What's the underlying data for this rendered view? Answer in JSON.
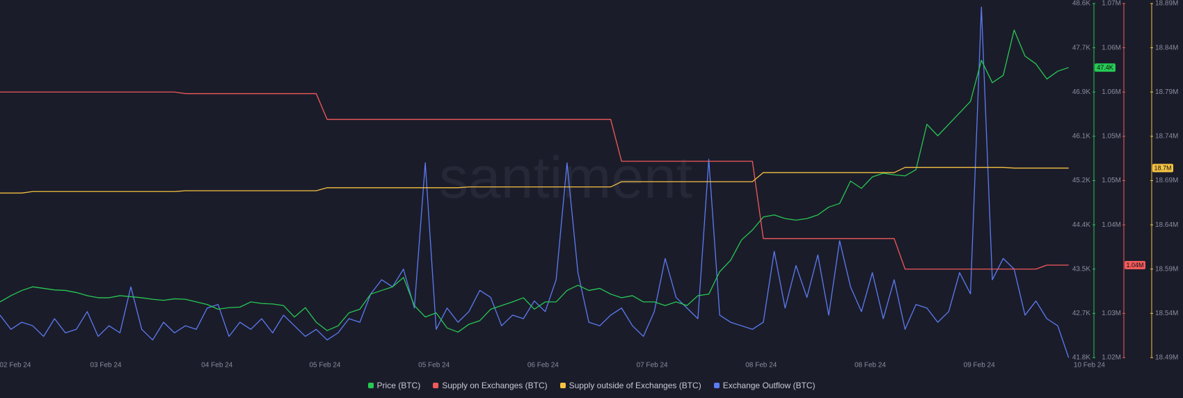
{
  "chart_data": {
    "type": "line",
    "watermark": "santiment",
    "x": [
      0,
      1,
      2,
      3,
      4,
      5,
      6,
      7,
      8,
      9,
      10,
      11,
      12,
      13,
      14,
      15,
      16,
      17,
      18,
      19,
      20,
      21,
      22,
      23,
      24,
      25,
      26,
      27,
      28,
      29,
      30,
      31,
      32,
      33,
      34,
      35,
      36,
      37,
      38,
      39,
      40,
      41,
      42,
      43,
      44,
      45,
      46,
      47,
      48,
      49,
      50,
      51,
      52,
      53,
      54,
      55,
      56,
      57,
      58,
      59,
      60,
      61,
      62,
      63,
      64,
      65,
      66,
      67,
      68,
      69,
      70,
      71,
      72,
      73,
      74,
      75,
      76,
      77,
      78,
      79,
      80,
      81,
      82,
      83,
      84,
      85,
      86,
      87,
      88,
      89,
      90,
      91,
      92,
      93,
      94,
      95,
      96,
      97,
      98
    ],
    "xlim": [
      0,
      100
    ],
    "xticks": [
      {
        "value": 1.4,
        "label": "02 Feb 24"
      },
      {
        "value": 9.7,
        "label": "03 Feb 24"
      },
      {
        "value": 19.9,
        "label": "04 Feb 24"
      },
      {
        "value": 29.8,
        "label": "05 Feb 24"
      },
      {
        "value": 39.8,
        "label": "05 Feb 24"
      },
      {
        "value": 49.8,
        "label": "06 Feb 24"
      },
      {
        "value": 59.8,
        "label": "07 Feb 24"
      },
      {
        "value": 69.8,
        "label": "08 Feb 24"
      },
      {
        "value": 79.8,
        "label": "08 Feb 24"
      },
      {
        "value": 89.8,
        "label": "09 Feb 24"
      },
      {
        "value": 99.9,
        "label": "10 Feb 24"
      }
    ],
    "ylim": [
      41800,
      48600
    ],
    "yticks": [
      {
        "value": 41800,
        "label": "41.8K"
      },
      {
        "value": 42650,
        "label": "42.7K"
      },
      {
        "value": 43500,
        "label": "43.5K"
      },
      {
        "value": 44350,
        "label": "44.4K"
      },
      {
        "value": 45200,
        "label": "45.2K"
      },
      {
        "value": 46050,
        "label": "46.1K"
      },
      {
        "value": 46900,
        "label": "46.9K"
      },
      {
        "value": 47750,
        "label": "47.7K"
      },
      {
        "value": 48600,
        "label": "48.6K"
      }
    ],
    "y2lim": [
      1024000,
      1068000
    ],
    "y2ticks": [
      {
        "value": 1024000,
        "label": "1.02M"
      },
      {
        "value": 1029500,
        "label": "1.03M"
      },
      {
        "value": 1040500,
        "label": "1.04M"
      },
      {
        "value": 1046000,
        "label": "1.05M"
      },
      {
        "value": 1051500,
        "label": "1.05M"
      },
      {
        "value": 1057000,
        "label": "1.06M"
      },
      {
        "value": 1062500,
        "label": "1.06M"
      },
      {
        "value": 1068000,
        "label": "1.07M"
      }
    ],
    "y3lim": [
      18490000,
      18890000
    ],
    "y3ticks": [
      {
        "value": 18490000,
        "label": "18.49M"
      },
      {
        "value": 18540000,
        "label": "18.54M"
      },
      {
        "value": 18590000,
        "label": "18.59M"
      },
      {
        "value": 18640000,
        "label": "18.64M"
      },
      {
        "value": 18690000,
        "label": "18.69M"
      },
      {
        "value": 18740000,
        "label": "18.74M"
      },
      {
        "value": 18790000,
        "label": "18.79M"
      },
      {
        "value": 18840000,
        "label": "18.84M"
      },
      {
        "value": 18890000,
        "label": "18.89M"
      }
    ],
    "y4lim": [
      0,
      100
    ],
    "grid": false,
    "legend": "bottom",
    "series": [
      {
        "name": "Price (BTC)",
        "color": "#26c953",
        "axis": "y",
        "badge": "47.4K",
        "values": [
          42870,
          42990,
          43090,
          43160,
          43130,
          43100,
          43090,
          43050,
          42990,
          42950,
          42950,
          42990,
          42970,
          42950,
          42920,
          42900,
          42930,
          42920,
          42870,
          42820,
          42730,
          42760,
          42770,
          42870,
          42840,
          42830,
          42800,
          42580,
          42760,
          42480,
          42320,
          42410,
          42660,
          42730,
          43020,
          43090,
          43160,
          43340,
          42800,
          42580,
          42660,
          42370,
          42290,
          42440,
          42510,
          42730,
          42800,
          42870,
          42950,
          42730,
          42870,
          42870,
          43090,
          43190,
          43090,
          43130,
          43020,
          42950,
          42990,
          42870,
          42870,
          42800,
          42870,
          42800,
          42990,
          43020,
          43450,
          43670,
          44060,
          44250,
          44500,
          44540,
          44470,
          44440,
          44470,
          44540,
          44690,
          44760,
          45190,
          45050,
          45270,
          45340,
          45310,
          45290,
          45410,
          46280,
          46060,
          46280,
          46500,
          46720,
          47510,
          47080,
          47220,
          48090,
          47590,
          47440,
          47150,
          47300,
          47370
        ]
      },
      {
        "name": "Supply on Exchanges (BTC)",
        "color": "#f05a5a",
        "axis": "y2",
        "badge": "1.04M",
        "values": [
          1057000,
          1057000,
          1057000,
          1057000,
          1057000,
          1057000,
          1057000,
          1057000,
          1057000,
          1057000,
          1057000,
          1057000,
          1057000,
          1057000,
          1057000,
          1057000,
          1057000,
          1056800,
          1056800,
          1056800,
          1056800,
          1056800,
          1056800,
          1056800,
          1056800,
          1056800,
          1056800,
          1056800,
          1056800,
          1056800,
          1053600,
          1053600,
          1053600,
          1053600,
          1053600,
          1053600,
          1053600,
          1053600,
          1053600,
          1053600,
          1053600,
          1053600,
          1053600,
          1053600,
          1053600,
          1053600,
          1053600,
          1053600,
          1053600,
          1053600,
          1053600,
          1053600,
          1053600,
          1053600,
          1053600,
          1053600,
          1053600,
          1048400,
          1048400,
          1048400,
          1048400,
          1048400,
          1048400,
          1048400,
          1048400,
          1048400,
          1048400,
          1048400,
          1048400,
          1048400,
          1038800,
          1038800,
          1038800,
          1038800,
          1038800,
          1038800,
          1038800,
          1038800,
          1038800,
          1038800,
          1038800,
          1038800,
          1038800,
          1035000,
          1035000,
          1035000,
          1035000,
          1035000,
          1035000,
          1035000,
          1035000,
          1035000,
          1035000,
          1035000,
          1035000,
          1035000,
          1035500,
          1035500,
          1035500
        ]
      },
      {
        "name": "Supply outside of Exchanges (BTC)",
        "color": "#f5c242",
        "axis": "y3",
        "badge": "18.7M",
        "values": [
          18675900,
          18675900,
          18675900,
          18677600,
          18677600,
          18677600,
          18677600,
          18677600,
          18677600,
          18677600,
          18677600,
          18677600,
          18677600,
          18677600,
          18677600,
          18677600,
          18677600,
          18678500,
          18678500,
          18678500,
          18678500,
          18678500,
          18678500,
          18678500,
          18678500,
          18678500,
          18678500,
          18678500,
          18678500,
          18678500,
          18681900,
          18681900,
          18681900,
          18681900,
          18681900,
          18681900,
          18681900,
          18681900,
          18681900,
          18681900,
          18681900,
          18681900,
          18681900,
          18682800,
          18682800,
          18682800,
          18682800,
          18682800,
          18682800,
          18682800,
          18682800,
          18682800,
          18682800,
          18682800,
          18682800,
          18682800,
          18682800,
          18688700,
          18688700,
          18688700,
          18688700,
          18688700,
          18688700,
          18688700,
          18688700,
          18688700,
          18688700,
          18688700,
          18688700,
          18688700,
          18699000,
          18699000,
          18699000,
          18699000,
          18699000,
          18699000,
          18699000,
          18699000,
          18699000,
          18699000,
          18699000,
          18699000,
          18699000,
          18704900,
          18704900,
          18704900,
          18704900,
          18704900,
          18704900,
          18704900,
          18704900,
          18704900,
          18704900,
          18704100,
          18704100,
          18704100,
          18704100,
          18704100,
          18704100
        ]
      },
      {
        "name": "Exchange Outflow (BTC)",
        "color": "#5b7cf2",
        "axis": "y4",
        "values": [
          12,
          8,
          10,
          9,
          6,
          11,
          7,
          8,
          13,
          6,
          9,
          7,
          20,
          8,
          5,
          10,
          7,
          9,
          8,
          14,
          15,
          6,
          10,
          8,
          11,
          7,
          12,
          9,
          6,
          8,
          5,
          7,
          11,
          10,
          18,
          22,
          20,
          25,
          14,
          55,
          8,
          14,
          10,
          13,
          19,
          17,
          9,
          12,
          11,
          16,
          13,
          22,
          55,
          24,
          10,
          9,
          12,
          14,
          9,
          6,
          13,
          28,
          17,
          14,
          11,
          56,
          12,
          10,
          9,
          8,
          10,
          30,
          14,
          26,
          17,
          29,
          12,
          33,
          20,
          13,
          24,
          11,
          22,
          8,
          15,
          14,
          10,
          13,
          24,
          18,
          99,
          22,
          28,
          25,
          12,
          16,
          11,
          9,
          0
        ]
      }
    ]
  }
}
